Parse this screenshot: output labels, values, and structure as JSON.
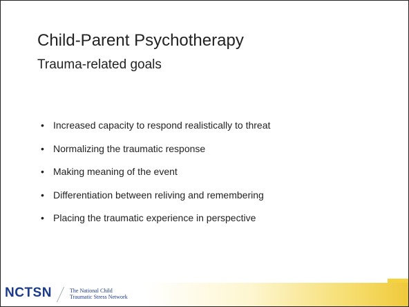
{
  "slide": {
    "title": "Child-Parent Psychotherapy",
    "subtitle": "Trauma-related goals",
    "bullets": [
      "Increased capacity to respond realistically to threat",
      "Normalizing the traumatic response",
      "Making meaning of the event",
      "Differentiation between reliving and remembering",
      "Placing the traumatic experience in perspective"
    ],
    "footer": {
      "logo": "NCTSN",
      "org_line1": "The National Child",
      "org_line2": "Traumatic Stress Network"
    }
  }
}
